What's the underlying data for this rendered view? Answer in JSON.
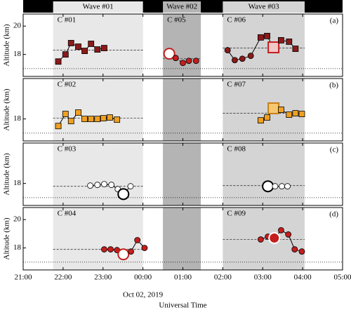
{
  "x_axis": {
    "xlim": [
      21,
      29
    ],
    "xticks": [
      {
        "value": 21,
        "label": "21:00"
      },
      {
        "value": 22,
        "label": "22:00"
      },
      {
        "value": 23,
        "label": "23:00"
      },
      {
        "value": 24,
        "label": "00:00"
      },
      {
        "value": 25,
        "label": "01:00"
      },
      {
        "value": 26,
        "label": "02:00"
      },
      {
        "value": 27,
        "label": "03:00"
      },
      {
        "value": 28,
        "label": "04:00"
      },
      {
        "value": 29,
        "label": "05:00"
      }
    ],
    "date_label": "Oct 02, 2019",
    "date_at": 24,
    "xlabel": "Universal Time",
    "waves": [
      {
        "label": "Wave #01",
        "start": 21.75,
        "end": 24.0,
        "color": "#e8e8e8"
      },
      {
        "label": "Wave #02",
        "start": 24.5,
        "end": 25.45,
        "color": "#b4b4b4"
      },
      {
        "label": "Wave #03",
        "start": 26.0,
        "end": 28.05,
        "color": "#d4d4d4"
      }
    ]
  },
  "chart_data": [
    {
      "type": "line",
      "panel_label": "(a)",
      "ylabel": "Altitude (km)",
      "ylim": [
        16.45,
        20.85
      ],
      "yticks": [
        18,
        20
      ],
      "reference_line": 17,
      "series": [
        {
          "name": "C #01",
          "wave": 0,
          "color": "#8b1a1a",
          "marker": "square",
          "line": "solid",
          "mean": 18.3,
          "x": [
            21.88,
            22.06,
            22.2,
            22.38,
            22.54,
            22.7,
            22.86,
            23.03
          ],
          "values": [
            17.5,
            18.0,
            18.8,
            18.55,
            18.25,
            18.75,
            18.35,
            18.45
          ]
        },
        {
          "name": "C #05",
          "wave": 1,
          "color": "#c41e1e",
          "marker": "circle",
          "line": "dotted",
          "mean": 17.7,
          "highlight": 0,
          "highlight_fill": "#ffffff",
          "highlight_stroke": "#c41e1e",
          "x": [
            24.66,
            24.82,
            25.0,
            25.15,
            25.33
          ],
          "values": [
            18.05,
            17.75,
            17.4,
            17.55,
            17.55
          ]
        },
        {
          "name": "C #06",
          "wave": 2,
          "color": "#8b1a1a",
          "markers": [
            "circle",
            "circle",
            "circle",
            "circle",
            "square",
            "square",
            "square",
            "square",
            "square",
            "square"
          ],
          "line": "solid",
          "mean": 18.45,
          "highlight": 6,
          "highlight_fill": "#f0c8c8",
          "highlight_stroke": "#c41e1e",
          "x": [
            26.12,
            26.3,
            26.49,
            26.7,
            26.95,
            27.11,
            27.27,
            27.46,
            27.66,
            27.82
          ],
          "values": [
            18.3,
            17.6,
            17.7,
            17.9,
            19.2,
            19.3,
            18.5,
            19.0,
            18.9,
            18.4
          ]
        }
      ]
    },
    {
      "type": "line",
      "panel_label": "(b)",
      "ylabel": "Altitude (km)",
      "ylim": [
        16.45,
        20.85
      ],
      "yticks": [
        18
      ],
      "reference_line": 17,
      "series": [
        {
          "name": "C #02",
          "wave": 0,
          "color": "#f0a020",
          "marker": "square",
          "line": "solid",
          "mean": 18.05,
          "x": [
            21.88,
            22.06,
            22.2,
            22.38,
            22.54,
            22.7,
            22.86,
            23.01,
            23.17,
            23.35
          ],
          "values": [
            17.5,
            18.35,
            17.85,
            18.45,
            18.0,
            18.0,
            18.0,
            18.05,
            18.1,
            17.95
          ]
        },
        {
          "name": "C #07",
          "wave": 2,
          "color": "#f0a020",
          "marker": "square",
          "line": "solid",
          "mean": 18.4,
          "highlight": 2,
          "highlight_fill": "#f5c870",
          "highlight_stroke": "#c88018",
          "x": [
            26.95,
            27.11,
            27.27,
            27.46,
            27.66,
            27.82,
            27.98
          ],
          "values": [
            17.9,
            18.1,
            18.75,
            18.65,
            18.3,
            18.4,
            18.35
          ]
        }
      ]
    },
    {
      "type": "line",
      "panel_label": "(c)",
      "ylabel": "Altitude (km)",
      "ylim": [
        16.45,
        20.85
      ],
      "yticks": [
        18
      ],
      "reference_line": 17,
      "series": [
        {
          "name": "C #03",
          "wave": 0,
          "color": "#ffffff",
          "marker": "circle",
          "line": "solid",
          "mean": 17.8,
          "highlight": 5,
          "highlight_fill": "#ffffff",
          "highlight_stroke": "#000000",
          "x": [
            22.68,
            22.86,
            23.03,
            23.21,
            23.37,
            23.51,
            23.69
          ],
          "values": [
            17.85,
            17.9,
            17.95,
            17.9,
            17.6,
            17.25,
            17.8
          ]
        },
        {
          "name": "C #08",
          "wave": 2,
          "color": "#ffffff",
          "marker": "circle",
          "line": "solid",
          "mean": 17.85,
          "highlight": 0,
          "highlight_fill": "#ffffff",
          "highlight_stroke": "#000000",
          "x": [
            27.13,
            27.31,
            27.48,
            27.62
          ],
          "values": [
            17.8,
            17.8,
            17.8,
            17.8
          ]
        }
      ]
    },
    {
      "type": "line",
      "panel_label": "(d)",
      "ylabel": "Altitude (km)",
      "ylim": [
        16.45,
        20.85
      ],
      "yticks": [
        18,
        20
      ],
      "reference_line": 17,
      "series": [
        {
          "name": "C #04",
          "wave": 0,
          "color": "#c41e1e",
          "marker": "circle",
          "line": "solid",
          "mean": 17.9,
          "highlight": 3,
          "highlight_fill": "#ffffff",
          "highlight_stroke": "#c41e1e",
          "x": [
            23.03,
            23.19,
            23.35,
            23.51,
            23.7,
            23.86,
            24.04
          ],
          "values": [
            17.9,
            17.9,
            17.85,
            17.55,
            17.75,
            18.55,
            18.0
          ]
        },
        {
          "name": "C #09",
          "wave": 2,
          "color": "#c41e1e",
          "marker": "circle",
          "line": "solid",
          "mean": 18.6,
          "highlight": 2,
          "highlight_fill": "#c41e1e",
          "highlight_stroke": "#ffffff",
          "x": [
            26.95,
            27.13,
            27.29,
            27.46,
            27.64,
            27.8,
            27.98
          ],
          "values": [
            18.6,
            18.8,
            18.7,
            19.25,
            18.95,
            17.9,
            17.75
          ]
        }
      ]
    }
  ]
}
